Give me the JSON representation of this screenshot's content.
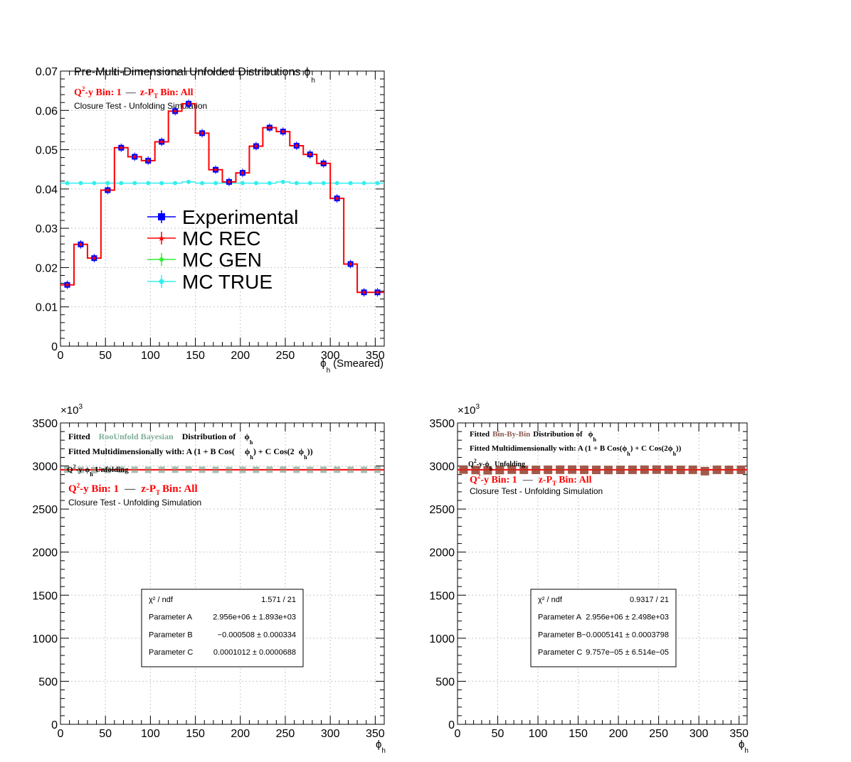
{
  "chart_data": [
    {
      "type": "line",
      "title": "Pre-Multi-Dimensional Unfolded Distributions",
      "title_phi": "ϕ",
      "title_sub": "h",
      "xlabel_phi": "ϕ",
      "xlabel_sub": "h",
      "xlabel_rest": "(Smeared)",
      "xlim": [
        0,
        360
      ],
      "ylim": [
        0,
        0.07
      ],
      "xticks": [
        "0",
        "50",
        "100",
        "150",
        "200",
        "250",
        "300",
        "350"
      ],
      "xtick_values": [
        0,
        50,
        100,
        150,
        200,
        250,
        300,
        350
      ],
      "yticks": [
        "0",
        "0.01",
        "0.02",
        "0.03",
        "0.04",
        "0.05",
        "0.06",
        "0.07"
      ],
      "ytick_values": [
        0,
        0.01,
        0.02,
        0.03,
        0.04,
        0.05,
        0.06,
        0.07
      ],
      "grid": true,
      "annotations": {
        "bin_q": "Q",
        "bin_sup": "2",
        "bin_mid": "-y Bin: 1",
        "bin_dash": "—",
        "bin_z": "z-P",
        "bin_zsub": "T",
        "bin_end": "Bin: All",
        "closure": "Closure Test - Unfolding Simulation"
      },
      "legend": [
        "Experimental",
        "MC REC",
        "MC GEN",
        "MC TRUE"
      ],
      "x_edges": [
        0,
        15,
        30,
        45,
        60,
        75,
        90,
        105,
        120,
        135,
        150,
        165,
        180,
        195,
        210,
        225,
        240,
        255,
        270,
        285,
        300,
        315,
        330,
        345,
        360
      ],
      "series": [
        {
          "name": "Experimental",
          "values": [
            0.0156,
            0.0259,
            0.0224,
            0.0397,
            0.0505,
            0.0482,
            0.0472,
            0.052,
            0.0598,
            0.0617,
            0.0542,
            0.0449,
            0.0418,
            0.0441,
            0.0509,
            0.0556,
            0.0546,
            0.051,
            0.0488,
            0.0465,
            0.0376,
            0.0209,
            0.0137,
            0.0137
          ]
        },
        {
          "name": "MC REC",
          "values": [
            0.0156,
            0.0259,
            0.0224,
            0.0397,
            0.0505,
            0.0482,
            0.0472,
            0.052,
            0.0598,
            0.0617,
            0.0542,
            0.0449,
            0.0418,
            0.0441,
            0.0509,
            0.0556,
            0.0546,
            0.051,
            0.0488,
            0.0465,
            0.0376,
            0.0209,
            0.0137,
            0.0137
          ]
        },
        {
          "name": "MC TRUE",
          "values": [
            0.0415,
            0.0415,
            0.0415,
            0.0415,
            0.0415,
            0.0415,
            0.0415,
            0.0415,
            0.0415,
            0.0418,
            0.0415,
            0.0415,
            0.0415,
            0.0415,
            0.0415,
            0.0415,
            0.0418,
            0.0415,
            0.0415,
            0.0415,
            0.0415,
            0.0415,
            0.0415,
            0.0415
          ]
        }
      ],
      "colors": {
        "Experimental": "#0000ff",
        "MC REC": "#ff0000",
        "MC GEN": "#33ee33",
        "MC TRUE": "#33eeee"
      }
    },
    {
      "type": "scatter",
      "exponent_label": "×10",
      "exponent_sup": "3",
      "xlabel_phi": "ϕ",
      "xlabel_sub": "h",
      "xlim": [
        0,
        360
      ],
      "ylim": [
        0,
        3500
      ],
      "xticks": [
        "0",
        "50",
        "100",
        "150",
        "200",
        "250",
        "300",
        "350"
      ],
      "xtick_values": [
        0,
        50,
        100,
        150,
        200,
        250,
        300,
        350
      ],
      "yticks": [
        "0",
        "500",
        "1000",
        "1500",
        "2000",
        "2500",
        "3000",
        "3500"
      ],
      "ytick_values": [
        0,
        500,
        1000,
        1500,
        2000,
        2500,
        3000,
        3500
      ],
      "grid": true,
      "annotations": {
        "fitted": "Fitted",
        "method": "RooUnfold Bayesian",
        "dist_of": "Distribution of",
        "phi": "ϕ",
        "phi_sub": "h",
        "fit_line_a": "Fitted Multidimensionally with: A (1 + B Cos(",
        "fit_line_b": ") + C Cos(2",
        "fit_line_c": "))",
        "unf_a": "Q",
        "unf_sup": "2",
        "unf_b": "-y-",
        "unf_c": "Unfolding",
        "bin_q": "Q",
        "bin_sup": "2",
        "bin_mid": "-y Bin: 1",
        "bin_dash": "—",
        "bin_z": "z-P",
        "bin_zsub": "T",
        "bin_end": "Bin: All",
        "closure": "Closure Test - Unfolding Simulation"
      },
      "stats": [
        {
          "label": "χ² / ndf",
          "value": "1.571 / 21"
        },
        {
          "label": "Parameter A",
          "value": "2.956e+06 ± 1.893e+03"
        },
        {
          "label": "Parameter B",
          "value": "−0.000508 ± 0.000334"
        },
        {
          "label": "Parameter C",
          "value": "0.0001012 ± 0.0000688"
        }
      ],
      "x": [
        7.5,
        22.5,
        37.5,
        52.5,
        67.5,
        82.5,
        97.5,
        112.5,
        127.5,
        142.5,
        157.5,
        172.5,
        187.5,
        202.5,
        217.5,
        232.5,
        247.5,
        262.5,
        277.5,
        292.5,
        307.5,
        322.5,
        337.5,
        352.5
      ],
      "series": [
        {
          "name": "",
          "values": [
            2958,
            2955,
            2952,
            2954,
            2957,
            2956,
            2955,
            2956,
            2957,
            2958,
            2956,
            2955,
            2954,
            2955,
            2956,
            2957,
            2958,
            2956,
            2955,
            2956,
            2957,
            2956,
            2955,
            2956
          ]
        }
      ],
      "fit_value": 2956,
      "colors": {
        "marker": "#9fb7a7",
        "fit": "#ff0000",
        "method": "#7fb09a"
      }
    },
    {
      "type": "scatter",
      "exponent_label": "×10",
      "exponent_sup": "3",
      "xlabel_phi": "ϕ",
      "xlabel_sub": "h",
      "xlim": [
        0,
        360
      ],
      "ylim": [
        0,
        3500
      ],
      "xticks": [
        "0",
        "50",
        "100",
        "150",
        "200",
        "250",
        "300",
        "350"
      ],
      "xtick_values": [
        0,
        50,
        100,
        150,
        200,
        250,
        300,
        350
      ],
      "yticks": [
        "0",
        "500",
        "1000",
        "1500",
        "2000",
        "2500",
        "3000",
        "3500"
      ],
      "ytick_values": [
        0,
        500,
        1000,
        1500,
        2000,
        2500,
        3000,
        3500
      ],
      "grid": true,
      "annotations": {
        "fitted": "Fitted",
        "method": "Bin-By-Bin",
        "dist_of": "Distribution of",
        "phi": "ϕ",
        "phi_sub": "h",
        "fit_line_a": "Fitted Multidimensionally with: A (1 + B Cos(",
        "fit_line_b": ") + C Cos(2",
        "fit_line_c": "))",
        "unf_a": "Q",
        "unf_sup": "2",
        "unf_b": "-y-",
        "unf_c": "Unfolding",
        "bin_q": "Q",
        "bin_sup": "2",
        "bin_mid": "-y Bin: 1",
        "bin_dash": "—",
        "bin_z": "z-P",
        "bin_zsub": "T",
        "bin_end": "Bin: All",
        "closure": "Closure Test - Unfolding Simulation"
      },
      "stats": [
        {
          "label": "χ² / ndf",
          "value": "0.9317 / 21"
        },
        {
          "label": "Parameter A",
          "value": "2.956e+06 ± 2.498e+03"
        },
        {
          "label": "Parameter B",
          "value": "−0.0005141 ± 0.0003798"
        },
        {
          "label": "Parameter C",
          "value": "9.757e−05 ± 6.514e−05"
        }
      ],
      "x": [
        7.5,
        22.5,
        37.5,
        52.5,
        67.5,
        82.5,
        97.5,
        112.5,
        127.5,
        142.5,
        157.5,
        172.5,
        187.5,
        202.5,
        217.5,
        232.5,
        247.5,
        262.5,
        277.5,
        292.5,
        307.5,
        322.5,
        337.5,
        352.5
      ],
      "series": [
        {
          "name": "",
          "values": [
            2958,
            2954,
            2950,
            2953,
            2957,
            2956,
            2955,
            2956,
            2957,
            2958,
            2956,
            2955,
            2954,
            2955,
            2956,
            2957,
            2958,
            2956,
            2955,
            2956,
            2940,
            2956,
            2955,
            2956
          ]
        }
      ],
      "fit_value": 2956,
      "colors": {
        "marker": "#a05a4a",
        "fit": "#ff0000",
        "method": "#8b5a50"
      }
    }
  ]
}
